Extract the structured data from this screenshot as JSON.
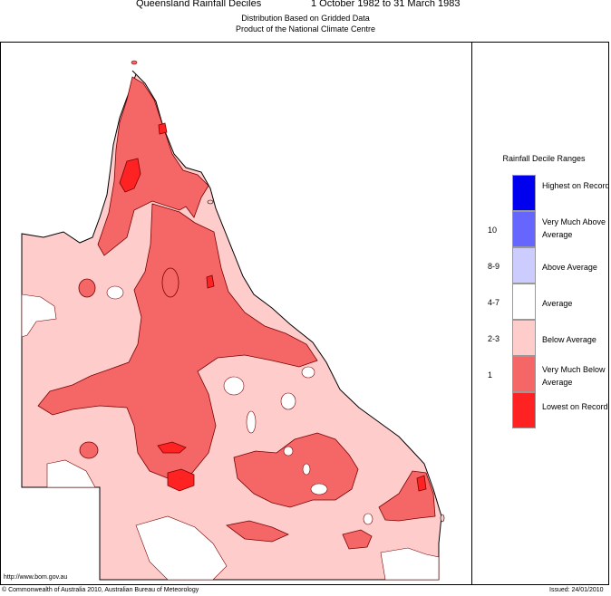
{
  "header": {
    "title": "Queensland Rainfall Deciles",
    "period": "1 October 1982 to 31 March 1983",
    "subtitle1": "Distribution Based on Gridded Data",
    "subtitle2": "Product of the National Climate Centre"
  },
  "legend": {
    "title": "Rainfall Decile Ranges",
    "items": [
      {
        "range": "",
        "label": "Highest on Record",
        "color": "#0000ee"
      },
      {
        "range": "10",
        "label": "Very Much Above Average",
        "color": "#6666ff"
      },
      {
        "range": "8-9",
        "label": "Above Average",
        "color": "#ccccff"
      },
      {
        "range": "4-7",
        "label": "Average",
        "color": "#ffffff"
      },
      {
        "range": "2-3",
        "label": "Below Average",
        "color": "#ffcccc"
      },
      {
        "range": "1",
        "label": "Very Much Below Average",
        "color": "#f56666"
      },
      {
        "range": "",
        "label": "Lowest on Record",
        "color": "#ff2222"
      }
    ]
  },
  "map": {
    "region": "Queensland",
    "colors": {
      "below_average": "#ffcccc",
      "very_much_below_average": "#f56666",
      "lowest_on_record": "#ff2222",
      "average": "#ffffff"
    }
  },
  "footer": {
    "url": "http://www.bom.gov.au",
    "copyright": "© Commonwealth of Australia 2010, Australian Bureau of Meteorology",
    "issued": "Issued: 24/01/2010"
  }
}
